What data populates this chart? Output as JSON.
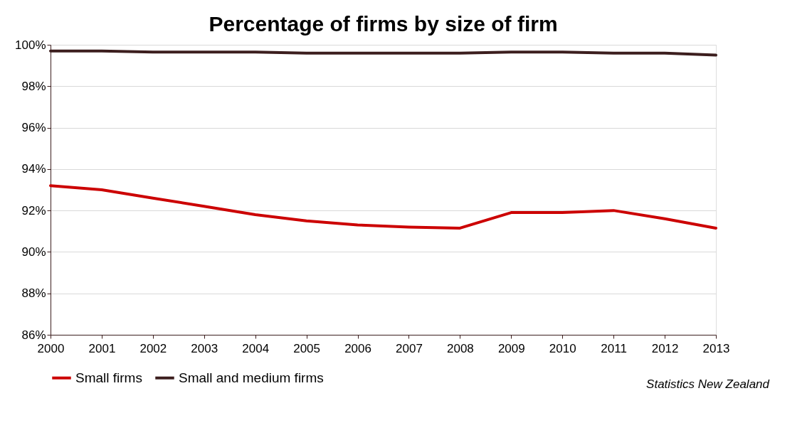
{
  "chart_data": {
    "type": "line",
    "title": "Percentage of firms by size of firm",
    "categories": [
      "2000",
      "2001",
      "2002",
      "2003",
      "2004",
      "2005",
      "2006",
      "2007",
      "2008",
      "2009",
      "2010",
      "2011",
      "2012",
      "2013"
    ],
    "series": [
      {
        "name": "Small firms",
        "color": "#cc0000",
        "values": [
          93.2,
          93.0,
          92.6,
          92.2,
          91.8,
          91.5,
          91.3,
          91.2,
          91.15,
          91.9,
          91.9,
          92.0,
          91.6,
          91.15
        ]
      },
      {
        "name": "Small and medium firms",
        "color": "#3c1e1e",
        "values": [
          99.7,
          99.7,
          99.65,
          99.65,
          99.65,
          99.6,
          99.6,
          99.6,
          99.6,
          99.65,
          99.65,
          99.6,
          99.6,
          99.5
        ]
      }
    ],
    "ylim": [
      86,
      100
    ],
    "yticks": [
      {
        "value": 86,
        "label": "86%"
      },
      {
        "value": 88,
        "label": "88%"
      },
      {
        "value": 90,
        "label": "90%"
      },
      {
        "value": 92,
        "label": "92%"
      },
      {
        "value": 94,
        "label": "94%"
      },
      {
        "value": 96,
        "label": "96%"
      },
      {
        "value": 98,
        "label": "98%"
      },
      {
        "value": 100,
        "label": "100%"
      }
    ],
    "grid": "y",
    "legend": "bottom left",
    "marker": "none",
    "line_style": "solid",
    "annotations": [
      "Statistics New Zealand"
    ]
  }
}
